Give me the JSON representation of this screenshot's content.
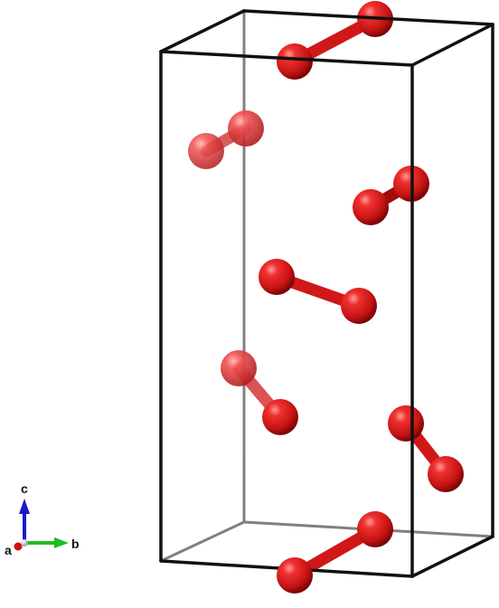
{
  "axes": {
    "a_label": "a",
    "b_label": "b",
    "c_label": "c"
  },
  "colors": {
    "atom": "#e01a1a",
    "cell_edge": "#111111",
    "axis_a": "#cc1111",
    "axis_b": "#22bb22",
    "axis_c": "#1a1acc"
  }
}
